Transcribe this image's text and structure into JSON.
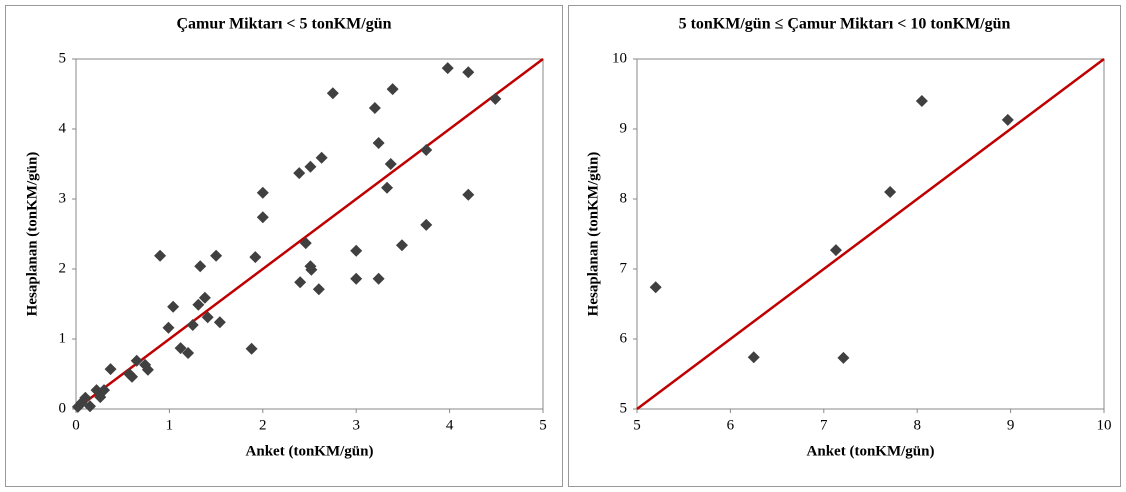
{
  "chart_data": [
    {
      "type": "scatter",
      "title": "Çamur Miktarı < 5 tonKM/gün",
      "x_label": "Anket (tonKM/gün)",
      "y_label": "Hesaplanan (tonKM/gün)",
      "x": [
        0.02,
        0.06,
        0.1,
        0.15,
        0.22,
        0.26,
        0.3,
        0.37,
        0.57,
        0.6,
        0.65,
        0.74,
        0.77,
        0.9,
        0.99,
        1.04,
        1.12,
        1.2,
        1.25,
        1.31,
        1.33,
        1.38,
        1.41,
        1.5,
        1.54,
        1.88,
        1.92,
        2.0,
        2.0,
        2.39,
        2.4,
        2.46,
        2.51,
        2.51,
        2.52,
        2.6,
        2.63,
        2.75,
        3.0,
        3.0,
        3.2,
        3.24,
        3.24,
        3.33,
        3.37,
        3.39,
        3.49,
        3.75,
        3.75,
        3.98,
        4.2,
        4.2,
        4.49
      ],
      "values": [
        0.03,
        0.09,
        0.16,
        0.04,
        0.27,
        0.17,
        0.27,
        0.57,
        0.5,
        0.46,
        0.69,
        0.63,
        0.56,
        2.19,
        1.16,
        1.46,
        0.87,
        0.8,
        1.2,
        1.49,
        2.04,
        1.59,
        1.31,
        2.19,
        1.24,
        0.86,
        2.17,
        2.74,
        3.09,
        3.37,
        1.81,
        2.37,
        3.46,
        2.04,
        1.99,
        1.71,
        3.59,
        4.51,
        2.26,
        1.86,
        4.3,
        1.86,
        3.8,
        3.16,
        3.5,
        4.57,
        2.34,
        2.63,
        3.7,
        4.87,
        3.06,
        4.81,
        4.43
      ],
      "color": "#404040",
      "reference_line": {
        "x": [
          0,
          5
        ],
        "y": [
          0,
          5
        ],
        "color": "#c00000"
      },
      "xlim": [
        0,
        5
      ],
      "ylim": [
        0,
        5
      ],
      "xticks": [
        0,
        1,
        2,
        3,
        4,
        5
      ],
      "yticks": [
        0,
        1,
        2,
        3,
        4,
        5
      ]
    },
    {
      "type": "scatter",
      "title": "5 tonKM/gün ≤ Çamur Miktarı < 10 tonKM/gün",
      "x_label": "Anket (tonKM/gün)",
      "y_label": "Hesaplanan (tonKM/gün)",
      "x": [
        5.2,
        6.25,
        7.13,
        7.21,
        7.71,
        8.05,
        8.97
      ],
      "values": [
        6.74,
        5.74,
        7.27,
        5.73,
        8.1,
        9.4,
        9.13
      ],
      "color": "#404040",
      "reference_line": {
        "x": [
          5,
          10
        ],
        "y": [
          5,
          10
        ],
        "color": "#c00000"
      },
      "xlim": [
        5,
        10
      ],
      "ylim": [
        5,
        10
      ],
      "xticks": [
        5,
        6,
        7,
        8,
        9,
        10
      ],
      "yticks": [
        5,
        6,
        7,
        8,
        9,
        10
      ]
    }
  ]
}
